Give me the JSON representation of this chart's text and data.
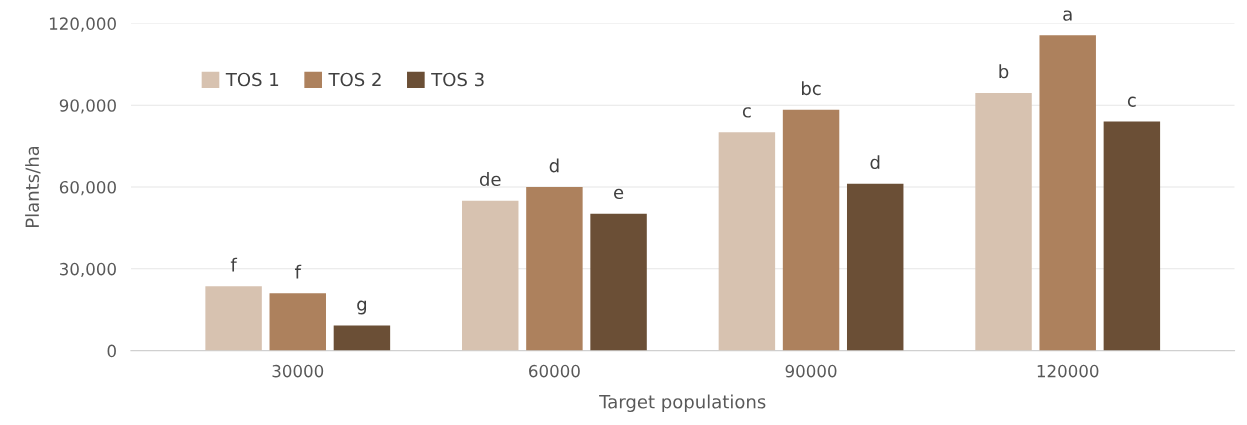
{
  "chart_data": {
    "type": "bar",
    "xlabel": "Target populations",
    "ylabel": "Plants/ha",
    "categories": [
      "30000",
      "60000",
      "90000",
      "120000"
    ],
    "series": [
      {
        "name": "TOS 1",
        "color": "#d7c2b0",
        "values": [
          23600,
          55000,
          80100,
          94500
        ],
        "value_labels": [
          "f",
          "de",
          "c",
          "b"
        ]
      },
      {
        "name": "TOS 2",
        "color": "#ad815d",
        "values": [
          21000,
          60000,
          88300,
          115600
        ],
        "value_labels": [
          "f",
          "d",
          "bc",
          "a"
        ]
      },
      {
        "name": "TOS 3",
        "color": "#6b4f36",
        "values": [
          9200,
          50200,
          61200,
          84000
        ],
        "value_labels": [
          "g",
          "e",
          "d",
          "c"
        ]
      }
    ],
    "ylim": [
      0,
      120000
    ],
    "yticks": [
      {
        "value": 0,
        "label": "0"
      },
      {
        "value": 30000,
        "label": "30,000"
      },
      {
        "value": 60000,
        "label": "60,000"
      },
      {
        "value": 90000,
        "label": "90,000"
      },
      {
        "value": 120000,
        "label": "120,000"
      }
    ],
    "grid": "y",
    "legend": "top left"
  }
}
